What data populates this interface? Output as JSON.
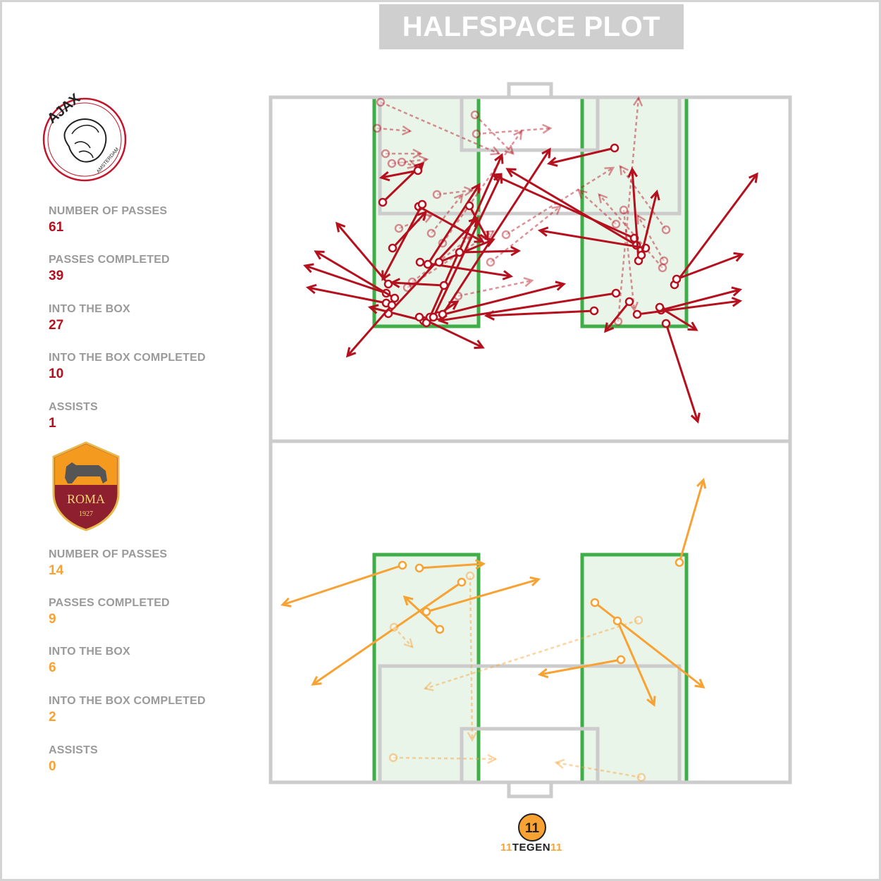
{
  "title": "HALFSPACE PLOT",
  "ajax": {
    "color": "#b5101d",
    "crest_text": "AJAX",
    "crest_subtext": "AMSTERDAM",
    "stats": [
      {
        "label": "NUMBER OF PASSES",
        "value": "61"
      },
      {
        "label": "PASSES COMPLETED",
        "value": "39"
      },
      {
        "label": "INTO THE BOX",
        "value": "27"
      },
      {
        "label": "INTO THE BOX COMPLETED",
        "value": "10"
      },
      {
        "label": "ASSISTS",
        "value": "1"
      }
    ]
  },
  "roma": {
    "color": "#f7a233",
    "crest_text": "ROMA",
    "crest_year": "1927",
    "stats": [
      {
        "label": "NUMBER OF PASSES",
        "value": "14"
      },
      {
        "label": "PASSES COMPLETED",
        "value": "9"
      },
      {
        "label": "INTO THE BOX",
        "value": "6"
      },
      {
        "label": "INTO THE BOX COMPLETED",
        "value": "2"
      },
      {
        "label": "ASSISTS",
        "value": "0"
      }
    ]
  },
  "footer": {
    "brand": "TEGEN",
    "mark_left": "11",
    "mark_right": "11"
  },
  "chart_data": {
    "type": "pass-map",
    "title": "HALFSPACE PLOT",
    "series": [
      {
        "name": "Ajax",
        "color": "#b5101d",
        "passes": [
          {
            "x1": 535,
            "y1": 182,
            "x2": 582,
            "y2": 186,
            "completed": false
          },
          {
            "x1": 547,
            "y1": 218,
            "x2": 597,
            "y2": 218,
            "completed": false
          },
          {
            "x1": 556,
            "y1": 232,
            "x2": 606,
            "y2": 226,
            "completed": false
          },
          {
            "x1": 570,
            "y1": 230,
            "x2": 590,
            "y2": 236,
            "completed": false
          },
          {
            "x1": 674,
            "y1": 163,
            "x2": 728,
            "y2": 218,
            "completed": false
          },
          {
            "x1": 540,
            "y1": 145,
            "x2": 708,
            "y2": 218,
            "completed": false
          },
          {
            "x1": 620,
            "y1": 276,
            "x2": 670,
            "y2": 270,
            "completed": false
          },
          {
            "x1": 566,
            "y1": 324,
            "x2": 612,
            "y2": 306,
            "completed": false
          },
          {
            "x1": 650,
            "y1": 420,
            "x2": 755,
            "y2": 398,
            "completed": false
          },
          {
            "x1": 585,
            "y1": 400,
            "x2": 668,
            "y2": 336,
            "completed": false
          },
          {
            "x1": 578,
            "y1": 408,
            "x2": 700,
            "y2": 328,
            "completed": false
          },
          {
            "x1": 628,
            "y1": 345,
            "x2": 740,
            "y2": 186,
            "completed": false
          },
          {
            "x1": 696,
            "y1": 372,
            "x2": 795,
            "y2": 293,
            "completed": false
          },
          {
            "x1": 874,
            "y1": 318,
            "x2": 821,
            "y2": 270,
            "completed": false
          },
          {
            "x1": 877,
            "y1": 456,
            "x2": 906,
            "y2": 139,
            "completed": false
          },
          {
            "x1": 945,
            "y1": 326,
            "x2": 880,
            "y2": 236,
            "completed": false
          },
          {
            "x1": 940,
            "y1": 380,
            "x2": 850,
            "y2": 276,
            "completed": false
          },
          {
            "x1": 885,
            "y1": 298,
            "x2": 900,
            "y2": 440,
            "completed": false
          },
          {
            "x1": 718,
            "y1": 333,
            "x2": 870,
            "y2": 238,
            "completed": false
          },
          {
            "x1": 612,
            "y1": 331,
            "x2": 656,
            "y2": 276,
            "completed": false
          },
          {
            "x1": 942,
            "y1": 370,
            "x2": 905,
            "y2": 306,
            "completed": false
          },
          {
            "x1": 676,
            "y1": 190,
            "x2": 781,
            "y2": 182,
            "completed": false
          },
          {
            "x1": 543,
            "y1": 287,
            "x2": 600,
            "y2": 232,
            "completed": true
          },
          {
            "x1": 601,
            "y1": 455,
            "x2": 525,
            "y2": 436,
            "completed": true
          },
          {
            "x1": 593,
            "y1": 242,
            "x2": 541,
            "y2": 252,
            "completed": true
          },
          {
            "x1": 557,
            "y1": 352,
            "x2": 604,
            "y2": 301,
            "completed": true
          },
          {
            "x1": 551,
            "y1": 403,
            "x2": 478,
            "y2": 317,
            "completed": true
          },
          {
            "x1": 548,
            "y1": 416,
            "x2": 433,
            "y2": 377,
            "completed": true
          },
          {
            "x1": 560,
            "y1": 423,
            "x2": 448,
            "y2": 357,
            "completed": true
          },
          {
            "x1": 548,
            "y1": 430,
            "x2": 437,
            "y2": 408,
            "completed": true
          },
          {
            "x1": 551,
            "y1": 445,
            "x2": 677,
            "y2": 310,
            "completed": true
          },
          {
            "x1": 556,
            "y1": 433,
            "x2": 493,
            "y2": 505,
            "completed": true
          },
          {
            "x1": 595,
            "y1": 450,
            "x2": 685,
            "y2": 493,
            "completed": true
          },
          {
            "x1": 605,
            "y1": 458,
            "x2": 649,
            "y2": 428,
            "completed": true
          },
          {
            "x1": 610,
            "y1": 450,
            "x2": 712,
            "y2": 220,
            "completed": true
          },
          {
            "x1": 622,
            "y1": 448,
            "x2": 800,
            "y2": 403,
            "completed": true
          },
          {
            "x1": 628,
            "y1": 446,
            "x2": 780,
            "y2": 212,
            "completed": true
          },
          {
            "x1": 596,
            "y1": 372,
            "x2": 725,
            "y2": 392,
            "completed": true
          },
          {
            "x1": 594,
            "y1": 293,
            "x2": 685,
            "y2": 343,
            "completed": true
          },
          {
            "x1": 599,
            "y1": 290,
            "x2": 543,
            "y2": 396,
            "completed": true
          },
          {
            "x1": 607,
            "y1": 375,
            "x2": 680,
            "y2": 262,
            "completed": true
          },
          {
            "x1": 623,
            "y1": 372,
            "x2": 700,
            "y2": 340,
            "completed": true
          },
          {
            "x1": 630,
            "y1": 405,
            "x2": 556,
            "y2": 401,
            "completed": true
          },
          {
            "x1": 652,
            "y1": 358,
            "x2": 736,
            "y2": 356,
            "completed": true
          },
          {
            "x1": 666,
            "y1": 292,
            "x2": 692,
            "y2": 340,
            "completed": true
          },
          {
            "x1": 615,
            "y1": 450,
            "x2": 711,
            "y2": 248,
            "completed": true
          },
          {
            "x1": 900,
            "y1": 338,
            "x2": 700,
            "y2": 248,
            "completed": true
          },
          {
            "x1": 903,
            "y1": 348,
            "x2": 720,
            "y2": 240,
            "completed": true
          },
          {
            "x1": 872,
            "y1": 210,
            "x2": 779,
            "y2": 232,
            "completed": true
          },
          {
            "x1": 874,
            "y1": 416,
            "x2": 624,
            "y2": 455,
            "completed": true
          },
          {
            "x1": 843,
            "y1": 441,
            "x2": 690,
            "y2": 448,
            "completed": true
          },
          {
            "x1": 916,
            "y1": 352,
            "x2": 766,
            "y2": 327,
            "completed": true
          },
          {
            "x1": 906,
            "y1": 370,
            "x2": 897,
            "y2": 240,
            "completed": true
          },
          {
            "x1": 910,
            "y1": 362,
            "x2": 932,
            "y2": 272,
            "completed": true
          },
          {
            "x1": 957,
            "y1": 404,
            "x2": 1074,
            "y2": 247,
            "completed": true
          },
          {
            "x1": 960,
            "y1": 396,
            "x2": 1053,
            "y2": 361,
            "completed": true
          },
          {
            "x1": 938,
            "y1": 440,
            "x2": 1050,
            "y2": 411,
            "completed": true
          },
          {
            "x1": 936,
            "y1": 436,
            "x2": 988,
            "y2": 468,
            "completed": true
          },
          {
            "x1": 945,
            "y1": 459,
            "x2": 990,
            "y2": 598,
            "completed": true
          },
          {
            "x1": 904,
            "y1": 446,
            "x2": 1050,
            "y2": 427,
            "completed": true
          },
          {
            "x1": 893,
            "y1": 428,
            "x2": 859,
            "y2": 470,
            "completed": true
          }
        ]
      },
      {
        "name": "Roma",
        "color": "#f7a233",
        "passes": [
          {
            "x1": 571,
            "y1": 802,
            "x2": 401,
            "y2": 858,
            "completed": true
          },
          {
            "x1": 595,
            "y1": 806,
            "x2": 686,
            "y2": 800,
            "completed": true
          },
          {
            "x1": 655,
            "y1": 826,
            "x2": 444,
            "y2": 971,
            "completed": true
          },
          {
            "x1": 605,
            "y1": 868,
            "x2": 764,
            "y2": 822,
            "completed": true
          },
          {
            "x1": 624,
            "y1": 893,
            "x2": 574,
            "y2": 847,
            "completed": true
          },
          {
            "x1": 844,
            "y1": 855,
            "x2": 998,
            "y2": 975,
            "completed": true
          },
          {
            "x1": 876,
            "y1": 881,
            "x2": 928,
            "y2": 1000,
            "completed": true
          },
          {
            "x1": 881,
            "y1": 936,
            "x2": 766,
            "y2": 957,
            "completed": true
          },
          {
            "x1": 964,
            "y1": 798,
            "x2": 998,
            "y2": 681,
            "completed": true
          },
          {
            "x1": 559,
            "y1": 890,
            "x2": 585,
            "y2": 918,
            "completed": false
          },
          {
            "x1": 667,
            "y1": 817,
            "x2": 670,
            "y2": 1050,
            "completed": false
          },
          {
            "x1": 906,
            "y1": 880,
            "x2": 603,
            "y2": 977,
            "completed": false
          },
          {
            "x1": 558,
            "y1": 1075,
            "x2": 703,
            "y2": 1077,
            "completed": false
          },
          {
            "x1": 910,
            "y1": 1103,
            "x2": 789,
            "y2": 1082,
            "completed": false
          }
        ]
      }
    ]
  }
}
